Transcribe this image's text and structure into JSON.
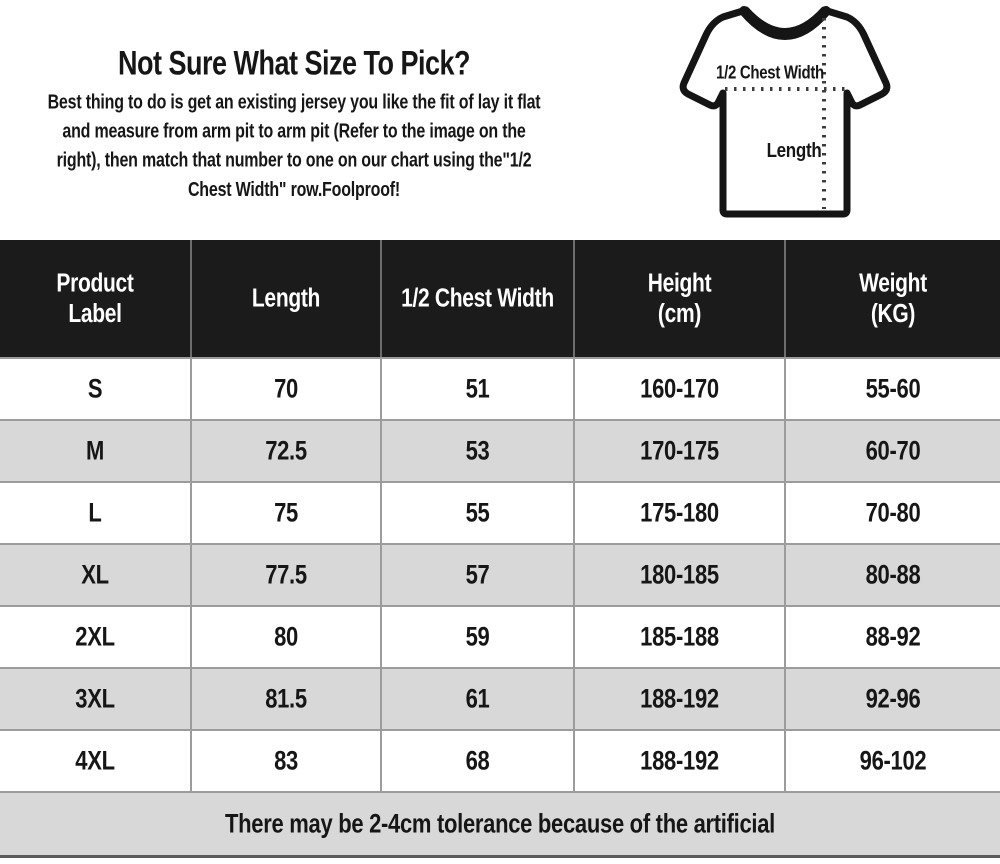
{
  "intro": {
    "title": "Not Sure What Size To Pick?",
    "body_lines": [
      "Best thing to do is get an existing jersey you like the fit of lay it flat",
      "and measure from arm pit to arm pit (Refer to the image on the",
      "right), then match that number to one on our chart using the\"1/2",
      "Chest Width\" row.Foolproof!"
    ]
  },
  "diagram": {
    "chest_width_label": "1/2 Chest Width",
    "length_label": "Length"
  },
  "table": {
    "headers": [
      "Product\nLabel",
      "Length",
      "1/2 Chest Width",
      "Height\n(cm)",
      "Weight\n(KG)"
    ],
    "rows": [
      [
        "S",
        "70",
        "51",
        "160-170",
        "55-60"
      ],
      [
        "M",
        "72.5",
        "53",
        "170-175",
        "60-70"
      ],
      [
        "L",
        "75",
        "55",
        "175-180",
        "70-80"
      ],
      [
        "XL",
        "77.5",
        "57",
        "180-185",
        "80-88"
      ],
      [
        "2XL",
        "80",
        "59",
        "185-188",
        "88-92"
      ],
      [
        "3XL",
        "81.5",
        "61",
        "188-192",
        "92-96"
      ],
      [
        "4XL",
        "83",
        "68",
        "188-192",
        "96-102"
      ]
    ],
    "footer_note": "There may be 2-4cm tolerance because of the artificial"
  },
  "colors": {
    "header_bg": "#1b1b1b",
    "header_text": "#ffffff",
    "row_alt_bg": "#d8d8d8",
    "footer_bg": "#d8d8d8",
    "border_gray": "#9c9c9c",
    "header_divider": "#6d6d6d",
    "bottom_border": "#5a5a5a",
    "text": "#161616"
  }
}
